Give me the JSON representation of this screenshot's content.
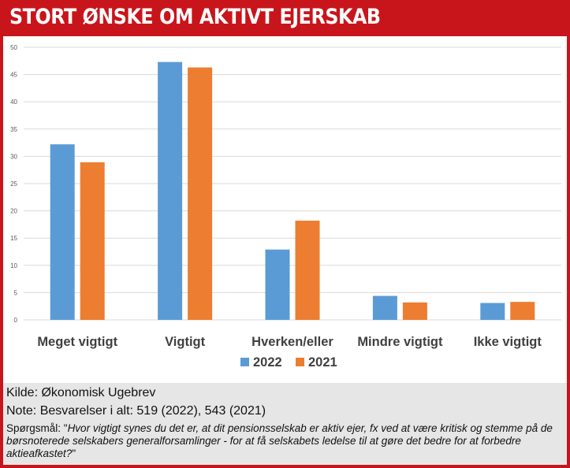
{
  "header": {
    "title": "STORT ØNSKE OM AKTIVT EJERSKAB"
  },
  "chart_data": {
    "type": "bar",
    "categories": [
      "Meget vigtigt",
      "Vigtigt",
      "Hverken/eller",
      "Mindre vigtigt",
      "Ikke vigtigt"
    ],
    "series": [
      {
        "name": "2022",
        "color": "#5b9bd5",
        "values": [
          32.2,
          47.3,
          12.9,
          4.4,
          3.1
        ]
      },
      {
        "name": "2021",
        "color": "#ed7d31",
        "values": [
          28.9,
          46.3,
          18.2,
          3.2,
          3.3
        ]
      }
    ],
    "ylim": [
      0,
      50
    ],
    "yticks": [
      0,
      5,
      10,
      15,
      20,
      25,
      30,
      35,
      40,
      45,
      50
    ],
    "grid": true,
    "legend": "bottom-center",
    "title": "",
    "xlabel": "",
    "ylabel": ""
  },
  "footer": {
    "source": "Kilde: Økonomisk Ugebrev",
    "note": "Note: Besvarelser i alt: 519 (2022), 543 (2021)",
    "question_prefix": "Spørgsmål: \"",
    "question_text": "Hvor vigtigt synes du det er, at dit pensionsselskab er aktiv ejer, fx ved at være kritisk og stemme på de børsnoterede selskabers generalforsamlinger - for at få selskabets ledelse til at gøre det bedre for at forbedre aktieafkastet?",
    "question_suffix": "\""
  }
}
